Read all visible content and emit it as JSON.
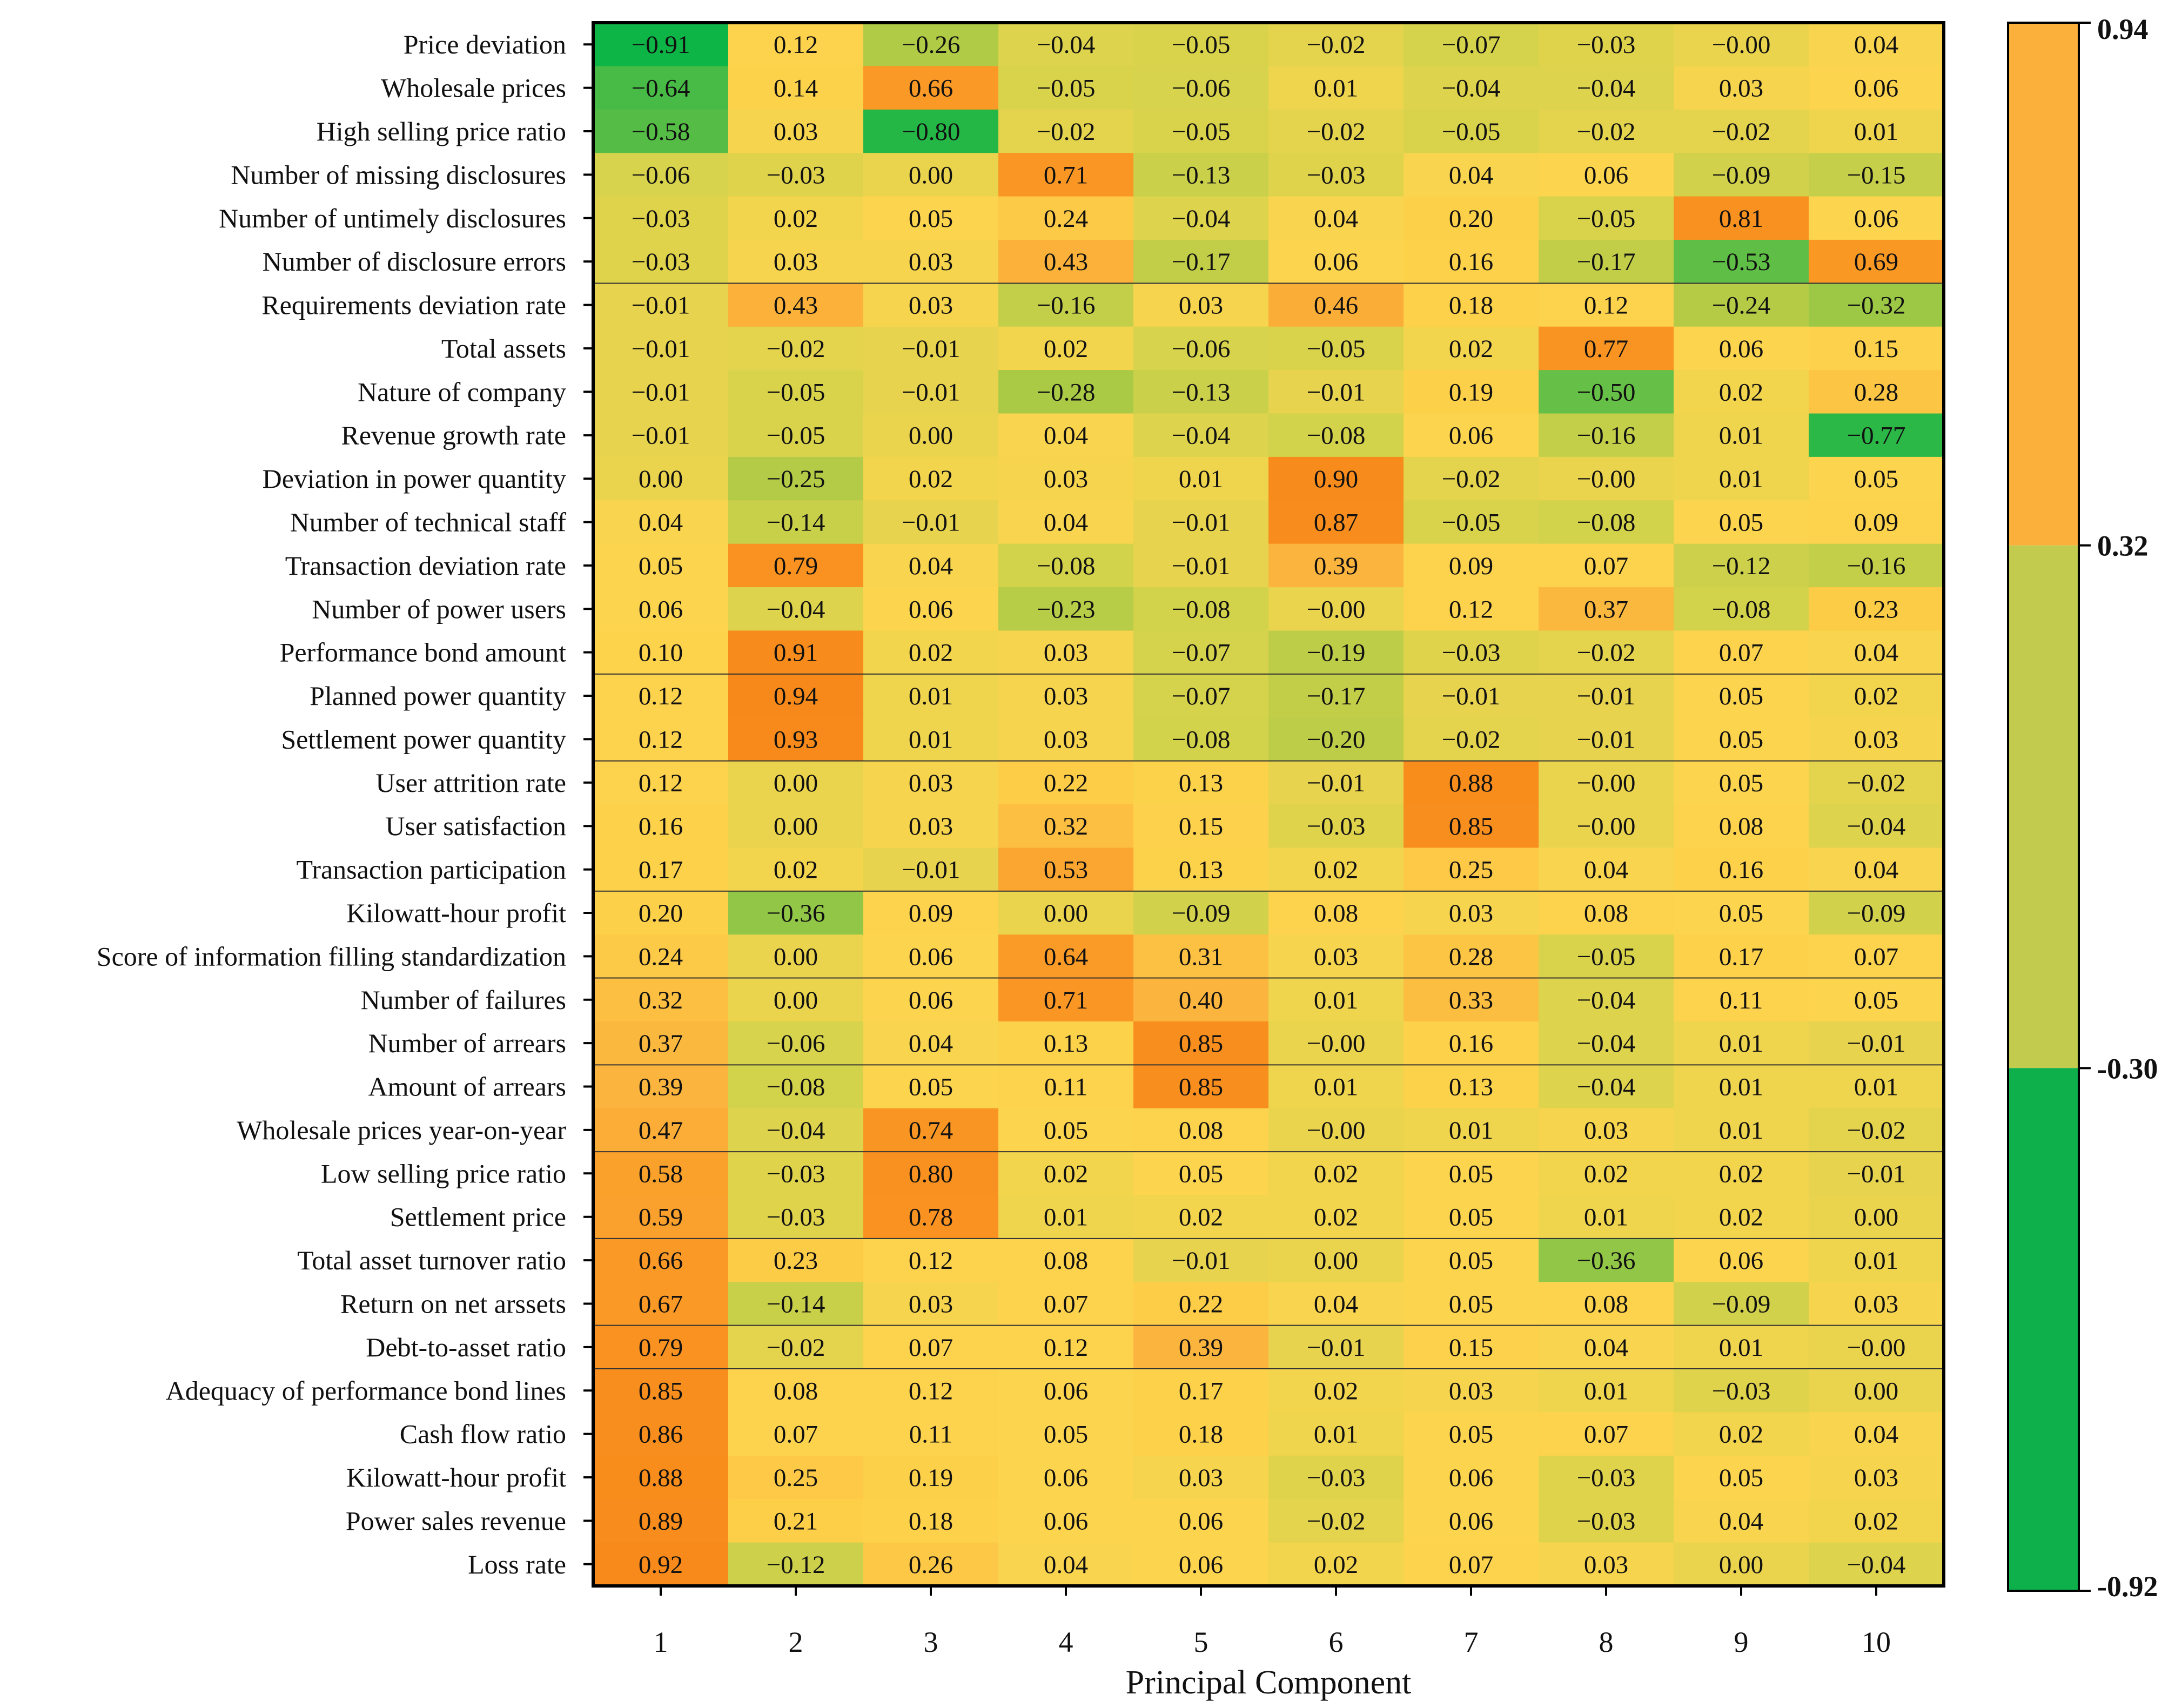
{
  "chart_data": {
    "type": "heatmap",
    "xlabel": "Principal Component",
    "ylabel": "",
    "x": [
      "1",
      "2",
      "3",
      "4",
      "5",
      "6",
      "7",
      "8",
      "9",
      "10"
    ],
    "y": [
      "Price deviation",
      "Wholesale prices",
      "High selling price ratio",
      "Number of missing disclosures",
      "Number of untimely disclosures",
      "Number of disclosure errors",
      "Requirements deviation rate",
      "Total assets",
      "Nature of company",
      "Revenue growth rate",
      "Deviation in power quantity",
      "Number of technical staff",
      "Transaction deviation rate",
      "Number of power users",
      "Performance bond amount",
      "Planned power quantity",
      "Settlement power quantity",
      "User attrition rate",
      "User satisfaction",
      "Transaction participation",
      "Kilowatt-hour profit",
      "Score of information filling standardization",
      "Number of failures",
      "Number of arrears",
      "Amount of arrears",
      "Wholesale prices year-on-year",
      "Low selling price ratio",
      "Settlement price",
      "Total asset turnover ratio",
      "Return on net arssets",
      "Debt-to-asset ratio",
      "Adequacy of performance bond lines",
      "Cash flow ratio",
      "Kilowatt-hour profit",
      "Power sales revenue",
      "Loss rate"
    ],
    "values": [
      [
        -0.91,
        0.12,
        -0.26,
        -0.04,
        -0.05,
        -0.02,
        -0.07,
        -0.03,
        -0.0,
        0.04
      ],
      [
        -0.64,
        0.14,
        0.66,
        -0.05,
        -0.06,
        0.01,
        -0.04,
        -0.04,
        0.03,
        0.06
      ],
      [
        -0.58,
        0.03,
        -0.8,
        -0.02,
        -0.05,
        -0.02,
        -0.05,
        -0.02,
        -0.02,
        0.01
      ],
      [
        -0.06,
        -0.03,
        0.0,
        0.71,
        -0.13,
        -0.03,
        0.04,
        0.06,
        -0.09,
        -0.15
      ],
      [
        -0.03,
        0.02,
        0.05,
        0.24,
        -0.04,
        0.04,
        0.2,
        -0.05,
        0.81,
        0.06
      ],
      [
        -0.03,
        0.03,
        0.03,
        0.43,
        -0.17,
        0.06,
        0.16,
        -0.17,
        -0.53,
        0.69
      ],
      [
        -0.01,
        0.43,
        0.03,
        -0.16,
        0.03,
        0.46,
        0.18,
        0.12,
        -0.24,
        -0.32
      ],
      [
        -0.01,
        -0.02,
        -0.01,
        0.02,
        -0.06,
        -0.05,
        0.02,
        0.77,
        0.06,
        0.15
      ],
      [
        -0.01,
        -0.05,
        -0.01,
        -0.28,
        -0.13,
        -0.01,
        0.19,
        -0.5,
        0.02,
        0.28
      ],
      [
        -0.01,
        -0.05,
        0.0,
        0.04,
        -0.04,
        -0.08,
        0.06,
        -0.16,
        0.01,
        -0.77
      ],
      [
        0.0,
        -0.25,
        0.02,
        0.03,
        0.01,
        0.9,
        -0.02,
        -0.0,
        0.01,
        0.05
      ],
      [
        0.04,
        -0.14,
        -0.01,
        0.04,
        -0.01,
        0.87,
        -0.05,
        -0.08,
        0.05,
        0.09
      ],
      [
        0.05,
        0.79,
        0.04,
        -0.08,
        -0.01,
        0.39,
        0.09,
        0.07,
        -0.12,
        -0.16
      ],
      [
        0.06,
        -0.04,
        0.06,
        -0.23,
        -0.08,
        -0.0,
        0.12,
        0.37,
        -0.08,
        0.23
      ],
      [
        0.1,
        0.91,
        0.02,
        0.03,
        -0.07,
        -0.19,
        -0.03,
        -0.02,
        0.07,
        0.04
      ],
      [
        0.12,
        0.94,
        0.01,
        0.03,
        -0.07,
        -0.17,
        -0.01,
        -0.01,
        0.05,
        0.02
      ],
      [
        0.12,
        0.93,
        0.01,
        0.03,
        -0.08,
        -0.2,
        -0.02,
        -0.01,
        0.05,
        0.03
      ],
      [
        0.12,
        0.0,
        0.03,
        0.22,
        0.13,
        -0.01,
        0.88,
        -0.0,
        0.05,
        -0.02
      ],
      [
        0.16,
        0.0,
        0.03,
        0.32,
        0.15,
        -0.03,
        0.85,
        -0.0,
        0.08,
        -0.04
      ],
      [
        0.17,
        0.02,
        -0.01,
        0.53,
        0.13,
        0.02,
        0.25,
        0.04,
        0.16,
        0.04
      ],
      [
        0.2,
        -0.36,
        0.09,
        0.0,
        -0.09,
        0.08,
        0.03,
        0.08,
        0.05,
        -0.09
      ],
      [
        0.24,
        0.0,
        0.06,
        0.64,
        0.31,
        0.03,
        0.28,
        -0.05,
        0.17,
        0.07
      ],
      [
        0.32,
        0.0,
        0.06,
        0.71,
        0.4,
        0.01,
        0.33,
        -0.04,
        0.11,
        0.05
      ],
      [
        0.37,
        -0.06,
        0.04,
        0.13,
        0.85,
        -0.0,
        0.16,
        -0.04,
        0.01,
        -0.01
      ],
      [
        0.39,
        -0.08,
        0.05,
        0.11,
        0.85,
        0.01,
        0.13,
        -0.04,
        0.01,
        0.01
      ],
      [
        0.47,
        -0.04,
        0.74,
        0.05,
        0.08,
        -0.0,
        0.01,
        0.03,
        0.01,
        -0.02
      ],
      [
        0.58,
        -0.03,
        0.8,
        0.02,
        0.05,
        0.02,
        0.05,
        0.02,
        0.02,
        -0.01
      ],
      [
        0.59,
        -0.03,
        0.78,
        0.01,
        0.02,
        0.02,
        0.05,
        0.01,
        0.02,
        0.0
      ],
      [
        0.66,
        0.23,
        0.12,
        0.08,
        -0.01,
        0.0,
        0.05,
        -0.36,
        0.06,
        0.01
      ],
      [
        0.67,
        -0.14,
        0.03,
        0.07,
        0.22,
        0.04,
        0.05,
        0.08,
        -0.09,
        0.03
      ],
      [
        0.79,
        -0.02,
        0.07,
        0.12,
        0.39,
        -0.01,
        0.15,
        0.04,
        0.01,
        -0.0
      ],
      [
        0.85,
        0.08,
        0.12,
        0.06,
        0.17,
        0.02,
        0.03,
        0.01,
        -0.03,
        0.0
      ],
      [
        0.86,
        0.07,
        0.11,
        0.05,
        0.18,
        0.01,
        0.05,
        0.07,
        0.02,
        0.04
      ],
      [
        0.88,
        0.25,
        0.19,
        0.06,
        0.03,
        -0.03,
        0.06,
        -0.03,
        0.05,
        0.03
      ],
      [
        0.89,
        0.21,
        0.18,
        0.06,
        0.06,
        -0.02,
        0.06,
        -0.03,
        0.04,
        0.02
      ],
      [
        0.92,
        -0.12,
        0.26,
        0.04,
        0.06,
        0.02,
        0.07,
        0.03,
        0.0,
        -0.04
      ]
    ],
    "value_labels": [
      [
        "−0.91",
        "0.12",
        "−0.26",
        "−0.04",
        "−0.05",
        "−0.02",
        "−0.07",
        "−0.03",
        "−0.00",
        "0.04"
      ],
      [
        "−0.64",
        "0.14",
        "0.66",
        "−0.05",
        "−0.06",
        "0.01",
        "−0.04",
        "−0.04",
        "0.03",
        "0.06"
      ],
      [
        "−0.58",
        "0.03",
        "−0.80",
        "−0.02",
        "−0.05",
        "−0.02",
        "−0.05",
        "−0.02",
        "−0.02",
        "0.01"
      ],
      [
        "−0.06",
        "−0.03",
        "0.00",
        "0.71",
        "−0.13",
        "−0.03",
        "0.04",
        "0.06",
        "−0.09",
        "−0.15"
      ],
      [
        "−0.03",
        "0.02",
        "0.05",
        "0.24",
        "−0.04",
        "0.04",
        "0.20",
        "−0.05",
        "0.81",
        "0.06"
      ],
      [
        "−0.03",
        "0.03",
        "0.03",
        "0.43",
        "−0.17",
        "0.06",
        "0.16",
        "−0.17",
        "−0.53",
        "0.69"
      ],
      [
        "−0.01",
        "0.43",
        "0.03",
        "−0.16",
        "0.03",
        "0.46",
        "0.18",
        "0.12",
        "−0.24",
        "−0.32"
      ],
      [
        "−0.01",
        "−0.02",
        "−0.01",
        "0.02",
        "−0.06",
        "−0.05",
        "0.02",
        "0.77",
        "0.06",
        "0.15"
      ],
      [
        "−0.01",
        "−0.05",
        "−0.01",
        "−0.28",
        "−0.13",
        "−0.01",
        "0.19",
        "−0.50",
        "0.02",
        "0.28"
      ],
      [
        "−0.01",
        "−0.05",
        "0.00",
        "0.04",
        "−0.04",
        "−0.08",
        "0.06",
        "−0.16",
        "0.01",
        "−0.77"
      ],
      [
        "0.00",
        "−0.25",
        "0.02",
        "0.03",
        "0.01",
        "0.90",
        "−0.02",
        "−0.00",
        "0.01",
        "0.05"
      ],
      [
        "0.04",
        "−0.14",
        "−0.01",
        "0.04",
        "−0.01",
        "0.87",
        "−0.05",
        "−0.08",
        "0.05",
        "0.09"
      ],
      [
        "0.05",
        "0.79",
        "0.04",
        "−0.08",
        "−0.01",
        "0.39",
        "0.09",
        "0.07",
        "−0.12",
        "−0.16"
      ],
      [
        "0.06",
        "−0.04",
        "0.06",
        "−0.23",
        "−0.08",
        "−0.00",
        "0.12",
        "0.37",
        "−0.08",
        "0.23"
      ],
      [
        "0.10",
        "0.91",
        "0.02",
        "0.03",
        "−0.07",
        "−0.19",
        "−0.03",
        "−0.02",
        "0.07",
        "0.04"
      ],
      [
        "0.12",
        "0.94",
        "0.01",
        "0.03",
        "−0.07",
        "−0.17",
        "−0.01",
        "−0.01",
        "0.05",
        "0.02"
      ],
      [
        "0.12",
        "0.93",
        "0.01",
        "0.03",
        "−0.08",
        "−0.20",
        "−0.02",
        "−0.01",
        "0.05",
        "0.03"
      ],
      [
        "0.12",
        "0.00",
        "0.03",
        "0.22",
        "0.13",
        "−0.01",
        "0.88",
        "−0.00",
        "0.05",
        "−0.02"
      ],
      [
        "0.16",
        "0.00",
        "0.03",
        "0.32",
        "0.15",
        "−0.03",
        "0.85",
        "−0.00",
        "0.08",
        "−0.04"
      ],
      [
        "0.17",
        "0.02",
        "−0.01",
        "0.53",
        "0.13",
        "0.02",
        "0.25",
        "0.04",
        "0.16",
        "0.04"
      ],
      [
        "0.20",
        "−0.36",
        "0.09",
        "0.00",
        "−0.09",
        "0.08",
        "0.03",
        "0.08",
        "0.05",
        "−0.09"
      ],
      [
        "0.24",
        "0.00",
        "0.06",
        "0.64",
        "0.31",
        "0.03",
        "0.28",
        "−0.05",
        "0.17",
        "0.07"
      ],
      [
        "0.32",
        "0.00",
        "0.06",
        "0.71",
        "0.40",
        "0.01",
        "0.33",
        "−0.04",
        "0.11",
        "0.05"
      ],
      [
        "0.37",
        "−0.06",
        "0.04",
        "0.13",
        "0.85",
        "−0.00",
        "0.16",
        "−0.04",
        "0.01",
        "−0.01"
      ],
      [
        "0.39",
        "−0.08",
        "0.05",
        "0.11",
        "0.85",
        "0.01",
        "0.13",
        "−0.04",
        "0.01",
        "0.01"
      ],
      [
        "0.47",
        "−0.04",
        "0.74",
        "0.05",
        "0.08",
        "−0.00",
        "0.01",
        "0.03",
        "0.01",
        "−0.02"
      ],
      [
        "0.58",
        "−0.03",
        "0.80",
        "0.02",
        "0.05",
        "0.02",
        "0.05",
        "0.02",
        "0.02",
        "−0.01"
      ],
      [
        "0.59",
        "−0.03",
        "0.78",
        "0.01",
        "0.02",
        "0.02",
        "0.05",
        "0.01",
        "0.02",
        "0.00"
      ],
      [
        "0.66",
        "0.23",
        "0.12",
        "0.08",
        "−0.01",
        "0.00",
        "0.05",
        "−0.36",
        "0.06",
        "0.01"
      ],
      [
        "0.67",
        "−0.14",
        "0.03",
        "0.07",
        "0.22",
        "0.04",
        "0.05",
        "0.08",
        "−0.09",
        "0.03"
      ],
      [
        "0.79",
        "−0.02",
        "0.07",
        "0.12",
        "0.39",
        "−0.01",
        "0.15",
        "0.04",
        "0.01",
        "−0.00"
      ],
      [
        "0.85",
        "0.08",
        "0.12",
        "0.06",
        "0.17",
        "0.02",
        "0.03",
        "0.01",
        "−0.03",
        "0.00"
      ],
      [
        "0.86",
        "0.07",
        "0.11",
        "0.05",
        "0.18",
        "0.01",
        "0.05",
        "0.07",
        "0.02",
        "0.04"
      ],
      [
        "0.88",
        "0.25",
        "0.19",
        "0.06",
        "0.03",
        "−0.03",
        "0.06",
        "−0.03",
        "0.05",
        "0.03"
      ],
      [
        "0.89",
        "0.21",
        "0.18",
        "0.06",
        "0.06",
        "−0.02",
        "0.06",
        "−0.03",
        "0.04",
        "0.02"
      ],
      [
        "0.92",
        "−0.12",
        "0.26",
        "0.04",
        "0.06",
        "0.02",
        "0.07",
        "0.03",
        "0.00",
        "−0.04"
      ]
    ],
    "zlim": [
      -0.92,
      0.94
    ],
    "colorbar": {
      "ticks": [
        0.94,
        0.32,
        -0.3,
        -0.92
      ],
      "tick_labels": [
        "0.94",
        "0.32",
        "-0.30",
        "-0.92"
      ],
      "bands": [
        {
          "from": 0.32,
          "to": 0.94,
          "color": "#fbb03b"
        },
        {
          "from": -0.3,
          "to": 0.32,
          "color": "#c3cb4f"
        },
        {
          "from": -0.92,
          "to": -0.3,
          "color": "#0db04b"
        }
      ]
    },
    "color_stops": [
      {
        "v": -0.92,
        "color": "#0bb446"
      },
      {
        "v": -0.5,
        "color": "#66bf46"
      },
      {
        "v": -0.25,
        "color": "#b3cb46"
      },
      {
        "v": -0.05,
        "color": "#d9d34c"
      },
      {
        "v": 0.05,
        "color": "#fdd44e"
      },
      {
        "v": 0.2,
        "color": "#fdd049"
      },
      {
        "v": 0.4,
        "color": "#fbb43d"
      },
      {
        "v": 0.65,
        "color": "#fa9a26"
      },
      {
        "v": 0.94,
        "color": "#f7891a"
      }
    ],
    "group_separators_after_rows": [
      5,
      14,
      16,
      19,
      21,
      23,
      25,
      27,
      29,
      30
    ],
    "grid": false,
    "legend": "right"
  }
}
